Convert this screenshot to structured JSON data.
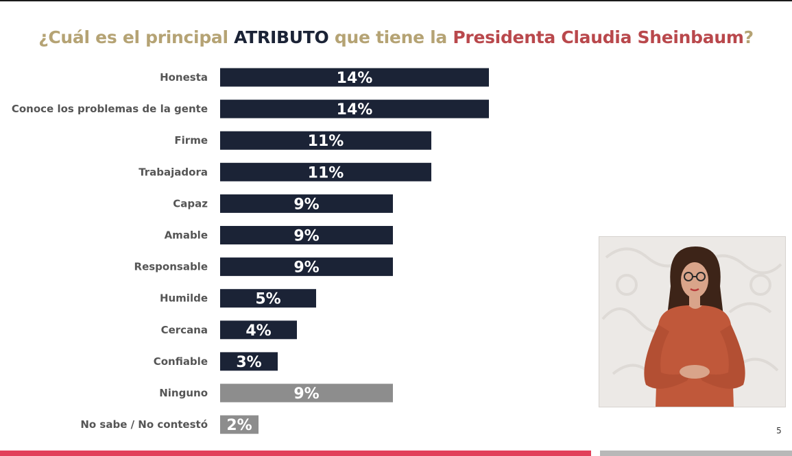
{
  "title": {
    "part1": "¿Cuál es el principal ",
    "part2": "ATRIBUTO",
    "part3": " que tiene la ",
    "part4": "Presidenta Claudia Sheinbaum",
    "part5": "?"
  },
  "colors": {
    "title_gold": "#b5a374",
    "title_navy": "#1b2336",
    "title_red": "#b9484c",
    "bar_main": "#1b2336",
    "bar_other": "#8d8d8d",
    "accent_bottom": "#e2405a"
  },
  "chart_data": {
    "type": "bar",
    "orientation": "horizontal",
    "title": "¿Cuál es el principal ATRIBUTO que tiene la Presidenta Claudia Sheinbaum?",
    "categories": [
      "Honesta",
      "Conoce los problemas de la gente",
      "Firme",
      "Trabajadora",
      "Capaz",
      "Amable",
      "Responsable",
      "Humilde",
      "Cercana",
      "Confiable",
      "Ninguno",
      "No sabe / No contestó"
    ],
    "values": [
      14,
      14,
      11,
      11,
      9,
      9,
      9,
      5,
      4,
      3,
      9,
      2
    ],
    "labels": [
      "14%",
      "14%",
      "11%",
      "11%",
      "9%",
      "9%",
      "9%",
      "5%",
      "4%",
      "3%",
      "9%",
      "2%"
    ],
    "bar_colors": [
      "#1b2336",
      "#1b2336",
      "#1b2336",
      "#1b2336",
      "#1b2336",
      "#1b2336",
      "#1b2336",
      "#1b2336",
      "#1b2336",
      "#1b2336",
      "#8d8d8d",
      "#8d8d8d"
    ],
    "xlabel": "",
    "ylabel": "",
    "unit": "%",
    "grid": false,
    "legend": "none"
  },
  "footer": {
    "page_number": "5"
  }
}
